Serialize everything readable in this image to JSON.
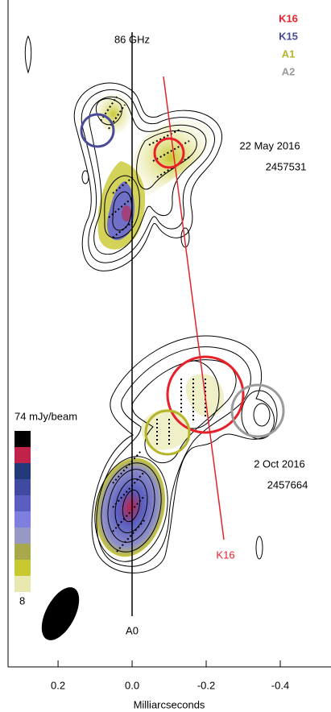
{
  "chart_data": {
    "type": "map",
    "title": "86 GHz",
    "xlabel": "Milliarcseconds",
    "xlim": [
      0.335,
      -0.537
    ],
    "xticks": [
      {
        "value": 0.2,
        "label": "0.2"
      },
      {
        "value": 0.0,
        "label": "0.0"
      },
      {
        "value": -0.2,
        "label": "-0.2"
      },
      {
        "value": -0.4,
        "label": "-0.4"
      }
    ],
    "series": [
      {
        "name": "K16",
        "color": "#e8202a"
      },
      {
        "name": "K15",
        "color": "#4a4a96"
      },
      {
        "name": "A1",
        "color": "#b5b52a"
      },
      {
        "name": "A2",
        "color": "#9a9a9a"
      }
    ],
    "epochs": [
      {
        "date": "22 May 2016",
        "jd": "2457531"
      },
      {
        "date": "2 Oct 2016",
        "jd": "2457664"
      }
    ],
    "annotations": [
      "K16",
      "A0"
    ],
    "colorbar": {
      "label": "74 mJy/beam",
      "min_label": "8",
      "colors": [
        "#000000",
        "#c0224a",
        "#233a7a",
        "#3f4aa0",
        "#5a5ec0",
        "#7f7fe0",
        "#9898c4",
        "#a9a84a",
        "#c8c830",
        "#e8e8b0"
      ]
    }
  }
}
